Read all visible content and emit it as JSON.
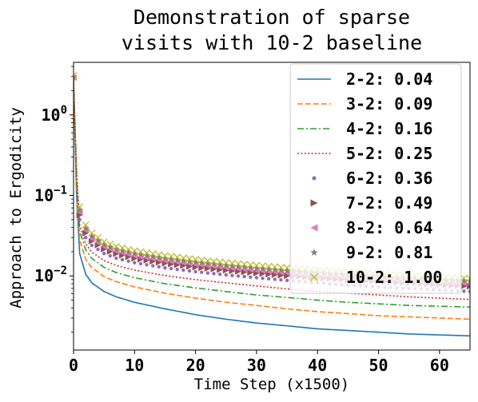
{
  "chart_data": {
    "type": "line",
    "title": [
      "Demonstration of sparse",
      "visits with 10-2 baseline"
    ],
    "xlabel": "Time Step (x1500)",
    "ylabel": "Approach to Ergodicity",
    "xlim": [
      0,
      65
    ],
    "ylim": [
      0.0012,
      4.5
    ],
    "yscale": "log",
    "grid": false,
    "legend_position": "top-right",
    "x_ticks": [
      0,
      10,
      20,
      30,
      40,
      50,
      60
    ],
    "x_tick_labels": [
      "0",
      "10",
      "20",
      "30",
      "40",
      "50",
      "60"
    ],
    "y_ticks": [
      1,
      0.1,
      0.01
    ],
    "y_tick_labels": [
      {
        "base": "10",
        "exp": "0"
      },
      {
        "base": "10",
        "exp": "−1"
      },
      {
        "base": "10",
        "exp": "−2"
      }
    ],
    "x": [
      0,
      0.5,
      1,
      2,
      3,
      5,
      7,
      10,
      15,
      20,
      25,
      30,
      35,
      40,
      45,
      50,
      55,
      60,
      65
    ],
    "series": [
      {
        "name": "2-2: 0.04",
        "color": "#1f77b4",
        "style": "solid",
        "marker": "none",
        "values": [
          2.5,
          0.1,
          0.019,
          0.0105,
          0.0082,
          0.0064,
          0.0055,
          0.0047,
          0.0039,
          0.0033,
          0.0029,
          0.0026,
          0.0024,
          0.0022,
          0.0021,
          0.002,
          0.0019,
          0.00185,
          0.0018
        ]
      },
      {
        "name": "3-2: 0.09",
        "color": "#ff7f0e",
        "style": "dashed",
        "marker": "none",
        "values": [
          2.6,
          0.14,
          0.028,
          0.016,
          0.0127,
          0.0098,
          0.0085,
          0.0073,
          0.0061,
          0.0053,
          0.0047,
          0.0043,
          0.0039,
          0.0036,
          0.0034,
          0.0032,
          0.0031,
          0.003,
          0.0029
        ]
      },
      {
        "name": "4-2: 0.16",
        "color": "#2ca02c",
        "style": "dashdot",
        "marker": "none",
        "values": [
          2.7,
          0.17,
          0.036,
          0.021,
          0.0165,
          0.0128,
          0.011,
          0.0095,
          0.008,
          0.0071,
          0.0064,
          0.0058,
          0.0054,
          0.005,
          0.0047,
          0.0045,
          0.0043,
          0.0042,
          0.0041
        ]
      },
      {
        "name": "5-2: 0.25",
        "color": "#d62728",
        "style": "dotted",
        "marker": "none",
        "values": [
          2.7,
          0.2,
          0.043,
          0.025,
          0.0198,
          0.0155,
          0.0135,
          0.0118,
          0.0101,
          0.009,
          0.0082,
          0.0075,
          0.0069,
          0.0064,
          0.0061,
          0.0058,
          0.0055,
          0.0053,
          0.0051
        ]
      },
      {
        "name": "6-2: 0.36",
        "color": "#9467bd",
        "style": "none",
        "marker": "circle",
        "values": [
          2.8,
          0.22,
          0.05,
          0.03,
          0.024,
          0.019,
          0.0166,
          0.0146,
          0.0126,
          0.0113,
          0.0103,
          0.0095,
          0.0088,
          0.0082,
          0.0077,
          0.0073,
          0.007,
          0.0067,
          0.0064
        ]
      },
      {
        "name": "7-2: 0.49",
        "color": "#8c564b",
        "style": "none",
        "marker": "triangle-right",
        "values": [
          2.8,
          0.24,
          0.057,
          0.034,
          0.027,
          0.0215,
          0.0188,
          0.0165,
          0.0143,
          0.0128,
          0.0117,
          0.0108,
          0.01,
          0.0094,
          0.0089,
          0.0085,
          0.0081,
          0.0077,
          0.0074
        ]
      },
      {
        "name": "8-2: 0.64",
        "color": "#e377c2",
        "style": "none",
        "marker": "triangle-left",
        "values": [
          2.9,
          0.26,
          0.062,
          0.037,
          0.029,
          0.0232,
          0.0203,
          0.0178,
          0.0155,
          0.0139,
          0.0127,
          0.0117,
          0.0109,
          0.0102,
          0.0096,
          0.0092,
          0.0088,
          0.0084,
          0.0081
        ]
      },
      {
        "name": "9-2: 0.81",
        "color": "#7f7f7f",
        "style": "none",
        "marker": "star",
        "values": [
          3.0,
          0.28,
          0.066,
          0.039,
          0.031,
          0.0245,
          0.0215,
          0.019,
          0.0166,
          0.0149,
          0.0136,
          0.0125,
          0.0117,
          0.011,
          0.0104,
          0.0099,
          0.0094,
          0.009,
          0.0087
        ]
      },
      {
        "name": "10-2: 1.00",
        "color": "#bcbd22",
        "style": "none",
        "marker": "x",
        "values": [
          3.1,
          0.3,
          0.072,
          0.043,
          0.034,
          0.0265,
          0.0232,
          0.0205,
          0.0178,
          0.016,
          0.0146,
          0.0135,
          0.0126,
          0.0118,
          0.0112,
          0.0106,
          0.0101,
          0.0097,
          0.0093
        ]
      }
    ]
  }
}
